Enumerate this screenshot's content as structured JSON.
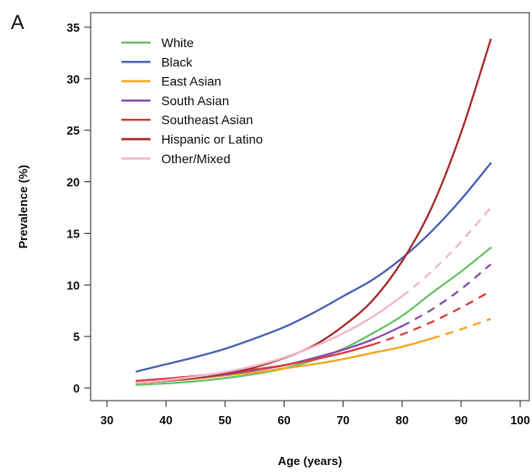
{
  "panel_label": "A",
  "chart_data": {
    "type": "line",
    "title": "",
    "xlabel": "Age (years)",
    "ylabel": "Prevalence (%)",
    "xlim": [
      30,
      100
    ],
    "ylim": [
      0,
      35
    ],
    "xticks": [
      30,
      40,
      50,
      60,
      70,
      80,
      90,
      100
    ],
    "yticks": [
      0,
      5,
      10,
      15,
      20,
      25,
      30,
      35
    ],
    "grid": false,
    "legend_position": "top-left",
    "line_style_note": "solid within observed age range, dashed beyond",
    "x": [
      35,
      40,
      45,
      50,
      55,
      60,
      65,
      70,
      75,
      80,
      85,
      90,
      95
    ],
    "series": [
      {
        "name": "White",
        "color": "#6cc36a",
        "solid_until": 95,
        "values": [
          0.3,
          0.45,
          0.65,
          0.95,
          1.35,
          1.9,
          2.7,
          3.8,
          5.3,
          7.0,
          9.2,
          11.3,
          13.6
        ]
      },
      {
        "name": "Black",
        "color": "#4a64b4",
        "solid_until": 95,
        "values": [
          1.6,
          2.3,
          3.0,
          3.8,
          4.8,
          5.9,
          7.3,
          8.9,
          10.5,
          12.6,
          15.2,
          18.3,
          21.8
        ]
      },
      {
        "name": "East Asian",
        "color": "#f5a623",
        "solid_until": 85,
        "values": [
          0.5,
          0.7,
          0.9,
          1.2,
          1.5,
          1.9,
          2.3,
          2.8,
          3.4,
          4.0,
          4.8,
          5.7,
          6.7
        ]
      },
      {
        "name": "South Asian",
        "color": "#8b4fb0",
        "solid_until": 80,
        "values": [
          0.5,
          0.7,
          0.95,
          1.3,
          1.7,
          2.2,
          2.9,
          3.7,
          4.7,
          6.0,
          7.6,
          9.6,
          12.0
        ]
      },
      {
        "name": "Southeast Asian",
        "color": "#d8403f",
        "solid_until": 75,
        "values": [
          0.7,
          0.9,
          1.15,
          1.45,
          1.8,
          2.2,
          2.75,
          3.4,
          4.2,
          5.2,
          6.4,
          7.8,
          9.4
        ]
      },
      {
        "name": "Hispanic or Latino",
        "color": "#a82f2f",
        "solid_until": 95,
        "values": [
          0.5,
          0.7,
          1.0,
          1.4,
          2.0,
          2.9,
          4.1,
          6.0,
          8.5,
          12.3,
          17.5,
          24.8,
          33.8
        ]
      },
      {
        "name": "Other/Mixed",
        "color": "#f3b6c8",
        "solid_until": 80,
        "values": [
          0.5,
          0.75,
          1.1,
          1.55,
          2.15,
          2.95,
          4.0,
          5.3,
          6.9,
          8.9,
          11.3,
          14.2,
          17.5
        ]
      }
    ]
  }
}
